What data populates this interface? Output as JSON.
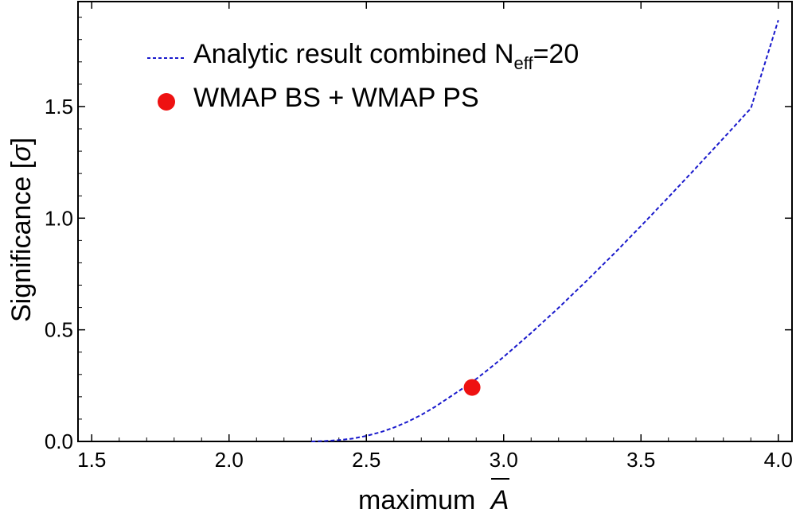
{
  "chart_data": {
    "type": "line",
    "xlabel": "maximum",
    "xlabel_symbol": "A",
    "ylabel": "Significance [",
    "ylabel_symbol": "σ",
    "ylabel_close": "]",
    "xlim": [
      1.45,
      4.05
    ],
    "ylim": [
      0,
      1.97
    ],
    "x_ticks": [
      "1.5",
      "2.0",
      "2.5",
      "3.0",
      "3.5",
      "4.0"
    ],
    "y_ticks": [
      "0.0",
      "0.5",
      "1.0",
      "1.5"
    ],
    "legend_position": "top-left",
    "series": [
      {
        "name": "Analytic result combined N",
        "name_subscript": "eff",
        "name_suffix": "=20",
        "style": "dashed",
        "color": "#1a1acc",
        "x": [
          2.3,
          2.35,
          2.4,
          2.45,
          2.5,
          2.55,
          2.6,
          2.65,
          2.7,
          2.75,
          2.8,
          2.85,
          2.9,
          2.95,
          3.0,
          3.1,
          3.2,
          3.3,
          3.4,
          3.5,
          3.6,
          3.7,
          3.8,
          3.9,
          4.0
        ],
        "y": [
          0.0,
          0.002,
          0.006,
          0.013,
          0.025,
          0.041,
          0.062,
          0.088,
          0.119,
          0.155,
          0.196,
          0.237,
          0.28,
          0.328,
          0.379,
          0.486,
          0.599,
          0.717,
          0.839,
          0.965,
          1.094,
          1.225,
          1.358,
          1.492,
          1.887
        ]
      },
      {
        "name": "WMAP BS + WMAP PS",
        "style": "marker",
        "color": "#ee1111",
        "x": [
          2.885
        ],
        "y": [
          0.242
        ]
      }
    ]
  }
}
